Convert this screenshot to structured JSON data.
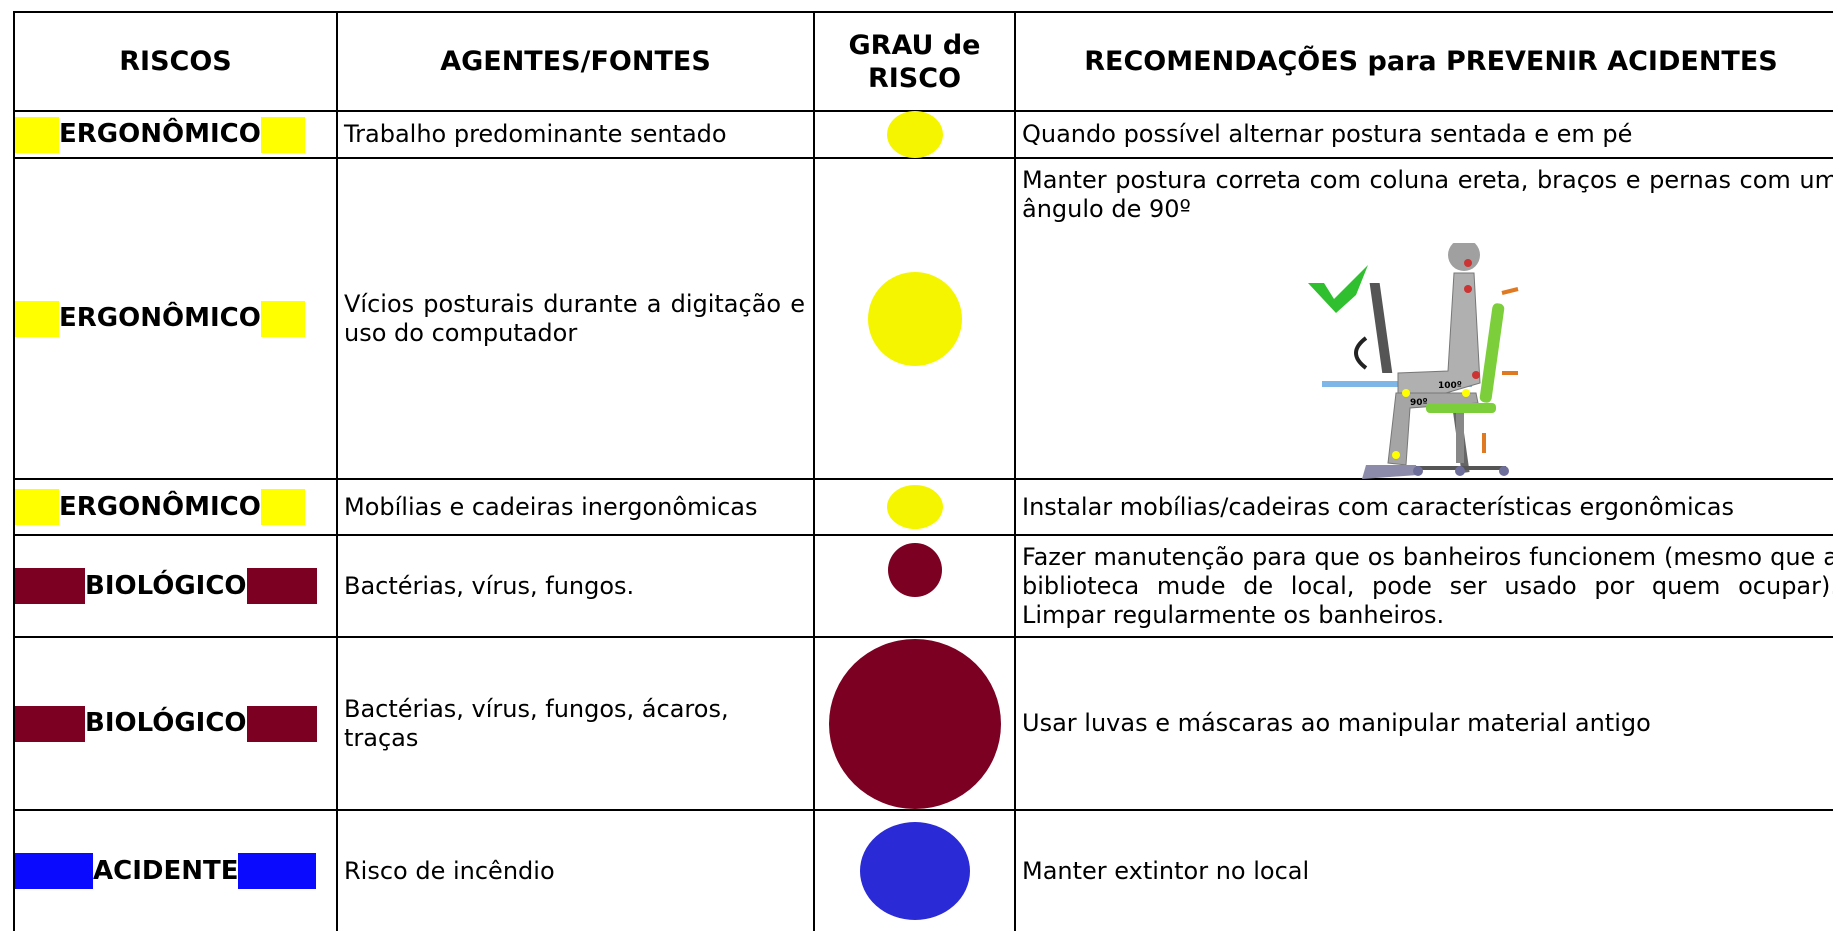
{
  "table": {
    "header": [
      "RISCOS",
      "AGENTES/FONTES",
      "GRAU de RISCO",
      "RECOMENDAÇÕES para PREVENIR ACIDENTES"
    ],
    "rows": [
      {
        "risk": "ERGONÔMICO",
        "color": "#ffff00",
        "agent": "Trabalho predominante sentado",
        "recommendation": "Quando possível alternar postura sentada e em pé"
      },
      {
        "risk": "ERGONÔMICO",
        "color": "#ffff00",
        "agent": "Vícios posturais durante a digitação e uso do computador",
        "recommendation": "Manter postura correta com coluna ereta, braços e pernas com um ângulo de 90º"
      },
      {
        "risk": "ERGONÔMICO",
        "color": "#ffff00",
        "agent": "Mobílias e cadeiras inergonômicas",
        "recommendation": "Instalar mobílias/cadeiras com características ergonômicas"
      },
      {
        "risk": "BIOLÓGICO",
        "color": "#7b0022",
        "agent": "Bactérias, vírus, fungos.",
        "recommendation": "Fazer manutenção para que os banheiros funcionem (mesmo que a biblioteca mude de local, pode ser usado por quem ocupar). Limpar regularmente os banheiros."
      },
      {
        "risk": "BIOLÓGICO",
        "color": "#7b0022",
        "agent": "Bactérias, vírus, fungos, ácaros, traças",
        "recommendation": "Usar luvas e máscaras ao manipular material antigo"
      },
      {
        "risk": "ACIDENTE",
        "color": "#0a0aff",
        "agent": "Risco de incêndio",
        "recommendation": "Manter extintor no local"
      }
    ]
  },
  "figure": {
    "labels": [
      "100º",
      "90º"
    ]
  }
}
